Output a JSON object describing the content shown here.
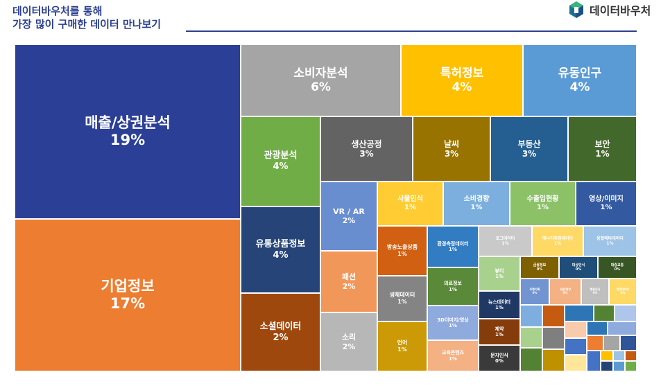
{
  "header": {
    "line1": "데이터바우처를 통해",
    "line2": "가장 많이 구매한 데이터 만나보기"
  },
  "brand": {
    "name": "데이터바우처",
    "logo_icon": "data-voucher-logo-icon"
  },
  "chart_data": {
    "type": "treemap",
    "title": "가장 많이 구매한 데이터",
    "items": [
      {
        "label": "매출/상권분석",
        "value": "19%",
        "color": "#2b3f96"
      },
      {
        "label": "기업정보",
        "value": "17%",
        "color": "#ed7d31"
      },
      {
        "label": "소비자분석",
        "value": "6%",
        "color": "#a5a5a5"
      },
      {
        "label": "특허정보",
        "value": "4%",
        "color": "#ffc000"
      },
      {
        "label": "유동인구",
        "value": "4%",
        "color": "#5b9bd5"
      },
      {
        "label": "관광분석",
        "value": "4%",
        "color": "#70ad47"
      },
      {
        "label": "유통상품정보",
        "value": "4%",
        "color": "#264478"
      },
      {
        "label": "소셜데이터",
        "value": "2%",
        "color": "#9e480e"
      },
      {
        "label": "생산공정",
        "value": "3%",
        "color": "#636363"
      },
      {
        "label": "날씨",
        "value": "3%",
        "color": "#997300"
      },
      {
        "label": "부동산",
        "value": "3%",
        "color": "#255e91"
      },
      {
        "label": "보안",
        "value": "1%",
        "color": "#43682b"
      },
      {
        "label": "VR / AR",
        "value": "2%",
        "color": "#698ed0"
      },
      {
        "label": "패션",
        "value": "2%",
        "color": "#f1975a"
      },
      {
        "label": "소리",
        "value": "2%",
        "color": "#b7b7b7"
      },
      {
        "label": "사물인식",
        "value": "1%",
        "color": "#ffcd33"
      },
      {
        "label": "소비경향",
        "value": "1%",
        "color": "#7cafdd"
      },
      {
        "label": "수출입현황",
        "value": "1%",
        "color": "#8cc168"
      },
      {
        "label": "영상/이미지",
        "value": "1%",
        "color": "#335aa1"
      },
      {
        "label": "방송노출상품",
        "value": "1%",
        "color": "#d26012"
      },
      {
        "label": "생체데이터",
        "value": "1%",
        "color": "#848484"
      },
      {
        "label": "언어",
        "value": "1%",
        "color": "#cc9a06"
      },
      {
        "label": "환경측정데이터",
        "value": "1%",
        "color": "#327dc2"
      },
      {
        "label": "의료정보",
        "value": "1%",
        "color": "#5a8a39"
      },
      {
        "label": "3D이미지/영상",
        "value": "1%",
        "color": "#8faadc"
      },
      {
        "label": "교육콘텐츠",
        "value": "1%",
        "color": "#f4b183"
      },
      {
        "label": "로그데이터",
        "value": "1%",
        "color": "#c9c9c9"
      },
      {
        "label": "에너지측정데이터",
        "value": "1%",
        "color": "#ffd966"
      },
      {
        "label": "융합메타데이터",
        "value": "1%",
        "color": "#9dc3e6"
      },
      {
        "label": "뷰티",
        "value": "1%",
        "color": "#a9d18e"
      },
      {
        "label": "뉴스데이터",
        "value": "1%",
        "color": "#1f3864"
      },
      {
        "label": "제약",
        "value": "1%",
        "color": "#843c0c"
      },
      {
        "label": "문자인식",
        "value": "0%",
        "color": "#3a3a3a"
      },
      {
        "label": "금융정보",
        "value": "0%",
        "color": "#7f6000"
      },
      {
        "label": "대상인식",
        "value": "0%",
        "color": "#1f4e79"
      },
      {
        "label": "대중교통",
        "value": "0%",
        "color": "#375623"
      },
      {
        "label": "주행기록",
        "value": "0%",
        "color": "#7295d2"
      },
      {
        "label": "식품/영양",
        "value": "0%",
        "color": "#f4b183"
      },
      {
        "label": "행동인식",
        "value": "0%",
        "color": "#bfbfbf"
      },
      {
        "label": "행정데이터",
        "value": "0%",
        "color": "#ffd966"
      },
      {
        "label": "",
        "value": "",
        "color": "#7eaedf"
      },
      {
        "label": "",
        "value": "",
        "color": "#c55a11"
      },
      {
        "label": "",
        "value": "",
        "color": "#2e75b6"
      },
      {
        "label": "",
        "value": "",
        "color": "#548235"
      },
      {
        "label": "",
        "value": "",
        "color": "#adc6ea"
      },
      {
        "label": "",
        "value": "",
        "color": "#a9d18e"
      },
      {
        "label": "",
        "value": "",
        "color": "#7f7f7f"
      },
      {
        "label": "",
        "value": "",
        "color": "#f8cbad"
      },
      {
        "label": "",
        "value": "",
        "color": "#2e75b6"
      },
      {
        "label": "",
        "value": "",
        "color": "#8faadc"
      },
      {
        "label": "",
        "value": "",
        "color": "#4472c4"
      },
      {
        "label": "",
        "value": "",
        "color": "#ed7d31"
      },
      {
        "label": "",
        "value": "",
        "color": "#a5a5a5"
      },
      {
        "label": "",
        "value": "",
        "color": "#2f5597"
      },
      {
        "label": "",
        "value": "",
        "color": "#548235"
      },
      {
        "label": "",
        "value": "",
        "color": "#bf9000"
      },
      {
        "label": "",
        "value": "",
        "color": "#ffe699"
      },
      {
        "label": "",
        "value": "",
        "color": "#4472c4"
      },
      {
        "label": "",
        "value": "",
        "color": "#ffc000"
      },
      {
        "label": "",
        "value": "",
        "color": "#9dc3e6"
      },
      {
        "label": "",
        "value": "",
        "color": "#c55a11"
      },
      {
        "label": "",
        "value": "",
        "color": "#264478"
      },
      {
        "label": "",
        "value": "",
        "color": "#5b9bd5"
      },
      {
        "label": "",
        "value": "",
        "color": "#70ad47"
      },
      {
        "label": "",
        "value": "",
        "color": "#843c0c"
      }
    ]
  }
}
